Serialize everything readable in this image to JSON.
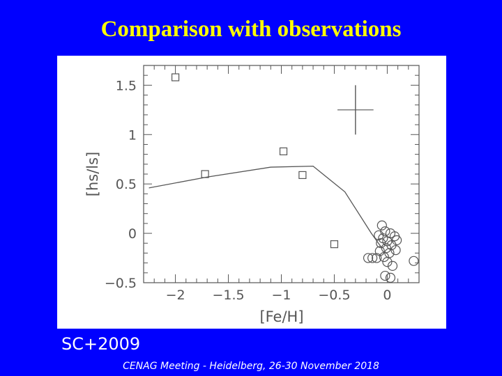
{
  "slide": {
    "title": "Comparison with observations",
    "citation": "SC+2009",
    "footer": "CENAG Meeting - Heidelberg, 26-30 November 2018"
  },
  "colors": {
    "background": "#0000ff",
    "title": "#ffff00",
    "text": "#ffffff",
    "plot_ink": "#555555"
  },
  "chart_data": {
    "type": "scatter",
    "xlabel": "[Fe/H]",
    "ylabel": "[hs/ls]",
    "xlim": [
      -2.3,
      0.3
    ],
    "ylim": [
      -0.5,
      1.7
    ],
    "x_ticks": [
      -2,
      -1.5,
      -1,
      -0.5,
      0
    ],
    "x_tick_labels": [
      "−2",
      "−1.5",
      "−1",
      "−0.5",
      "0"
    ],
    "y_ticks": [
      1.5,
      1,
      0.5,
      0,
      -0.5
    ],
    "y_tick_labels": [
      "1.5",
      "1",
      "0.5",
      "0",
      "−0.5"
    ],
    "grid": false,
    "error_bar": {
      "x": -0.3,
      "y": 1.25,
      "xerr": 0.17,
      "yerr": 0.25
    },
    "series": [
      {
        "marker": "line",
        "x": [
          -2.25,
          -1.7,
          -1.1,
          -0.7,
          -0.4,
          -0.15,
          -0.05
        ],
        "y": [
          0.46,
          0.57,
          0.67,
          0.68,
          0.42,
          0.0,
          -0.15
        ]
      },
      {
        "marker": "square",
        "x": [
          -2.0,
          -1.72,
          -0.98,
          -0.8,
          -0.5
        ],
        "y": [
          1.58,
          0.6,
          0.83,
          0.59,
          -0.11
        ]
      },
      {
        "marker": "circle",
        "x": [
          -0.05,
          -0.02,
          -0.08,
          -0.04,
          0.03,
          0.07,
          -0.06,
          0.0,
          0.04,
          0.09,
          -0.07,
          -0.01,
          0.02,
          0.08,
          -0.03,
          -0.1,
          -0.14,
          -0.18,
          0.0,
          0.05,
          -0.02,
          0.25,
          0.03
        ],
        "y": [
          0.08,
          0.02,
          -0.02,
          -0.05,
          0.0,
          -0.03,
          -0.1,
          -0.08,
          -0.12,
          -0.07,
          -0.18,
          -0.15,
          -0.2,
          -0.17,
          -0.24,
          -0.25,
          -0.25,
          -0.25,
          -0.29,
          -0.33,
          -0.43,
          -0.28,
          -0.45
        ]
      }
    ]
  }
}
